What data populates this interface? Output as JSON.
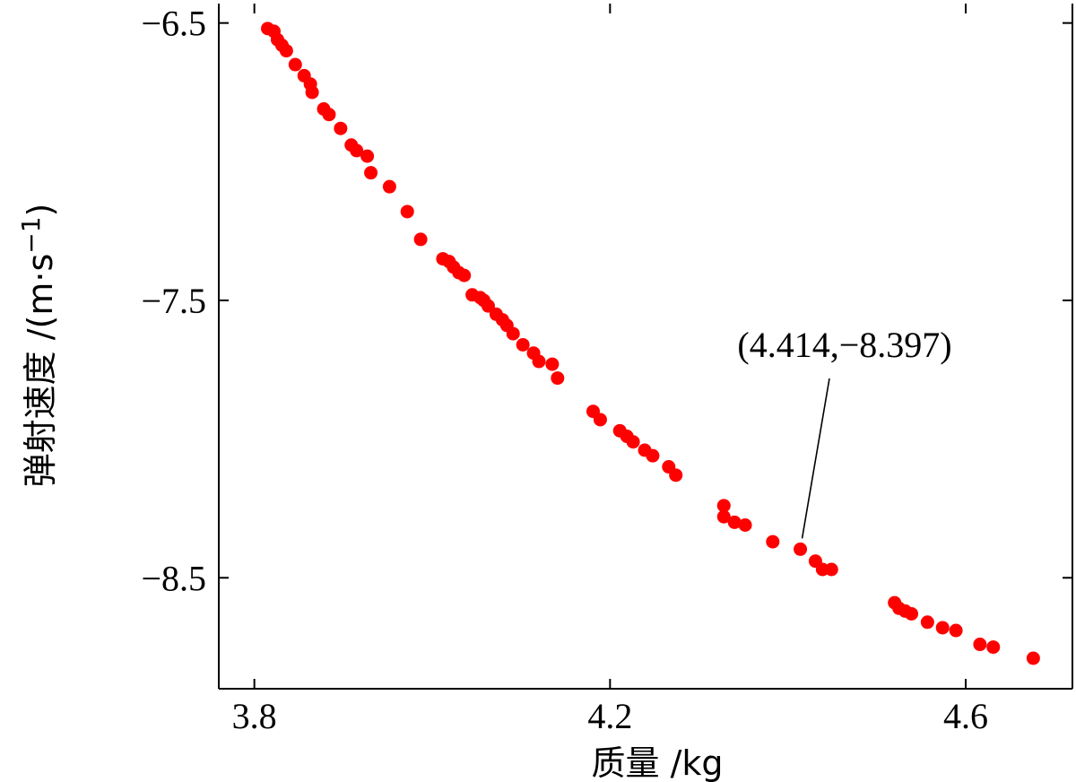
{
  "chart_data": {
    "type": "scatter",
    "xlabel": "质量 /kg",
    "ylabel": "弹射速度 /(m·s⁻¹)",
    "ylabel_main": "弹射速度 /(m·s",
    "ylabel_sup": "−1",
    "ylabel_close": ")",
    "xlim": [
      3.76,
      4.72
    ],
    "ylim": [
      -8.9,
      -6.43
    ],
    "xticks": [
      3.8,
      4.2,
      4.6
    ],
    "xtick_labels": [
      "3.8",
      "4.2",
      "4.6"
    ],
    "yticks": [
      -6.5,
      -7.5,
      -8.5
    ],
    "ytick_labels": [
      "−6.5",
      "−7.5",
      "−8.5"
    ],
    "grid": false,
    "marker_color": "#ff0000",
    "annotation": {
      "text": "(4.414,−8.397)",
      "x": 4.414,
      "y": -8.397
    },
    "series": [
      {
        "x": [
          3.815,
          3.822,
          3.826,
          3.831,
          3.836,
          3.846,
          3.856,
          3.863,
          3.865,
          3.878,
          3.884,
          3.897,
          3.909,
          3.915,
          3.927,
          3.931,
          3.952,
          3.972,
          3.987,
          4.012,
          4.019,
          4.024,
          4.03,
          4.036,
          4.045,
          4.054,
          4.058,
          4.063,
          4.072,
          4.079,
          4.084,
          4.091,
          4.102,
          4.114,
          4.12,
          4.135,
          4.141,
          4.181,
          4.189,
          4.211,
          4.219,
          4.226,
          4.239,
          4.248,
          4.266,
          4.274,
          4.328,
          4.328,
          4.34,
          4.352,
          4.383,
          4.414,
          4.431,
          4.439,
          4.449,
          4.52,
          4.525,
          4.532,
          4.539,
          4.557,
          4.574,
          4.589,
          4.616,
          4.631,
          4.676
        ],
        "y": [
          -6.52,
          -6.53,
          -6.56,
          -6.58,
          -6.6,
          -6.65,
          -6.69,
          -6.72,
          -6.75,
          -6.81,
          -6.83,
          -6.88,
          -6.94,
          -6.96,
          -6.98,
          -7.04,
          -7.09,
          -7.18,
          -7.28,
          -7.35,
          -7.36,
          -7.38,
          -7.4,
          -7.41,
          -7.48,
          -7.49,
          -7.5,
          -7.52,
          -7.55,
          -7.57,
          -7.59,
          -7.62,
          -7.66,
          -7.69,
          -7.72,
          -7.73,
          -7.78,
          -7.9,
          -7.93,
          -7.97,
          -7.99,
          -8.01,
          -8.04,
          -8.06,
          -8.1,
          -8.13,
          -8.24,
          -8.28,
          -8.3,
          -8.31,
          -8.37,
          -8.397,
          -8.44,
          -8.47,
          -8.47,
          -8.59,
          -8.61,
          -8.62,
          -8.63,
          -8.66,
          -8.68,
          -8.69,
          -8.74,
          -8.75,
          -8.79
        ]
      }
    ]
  }
}
